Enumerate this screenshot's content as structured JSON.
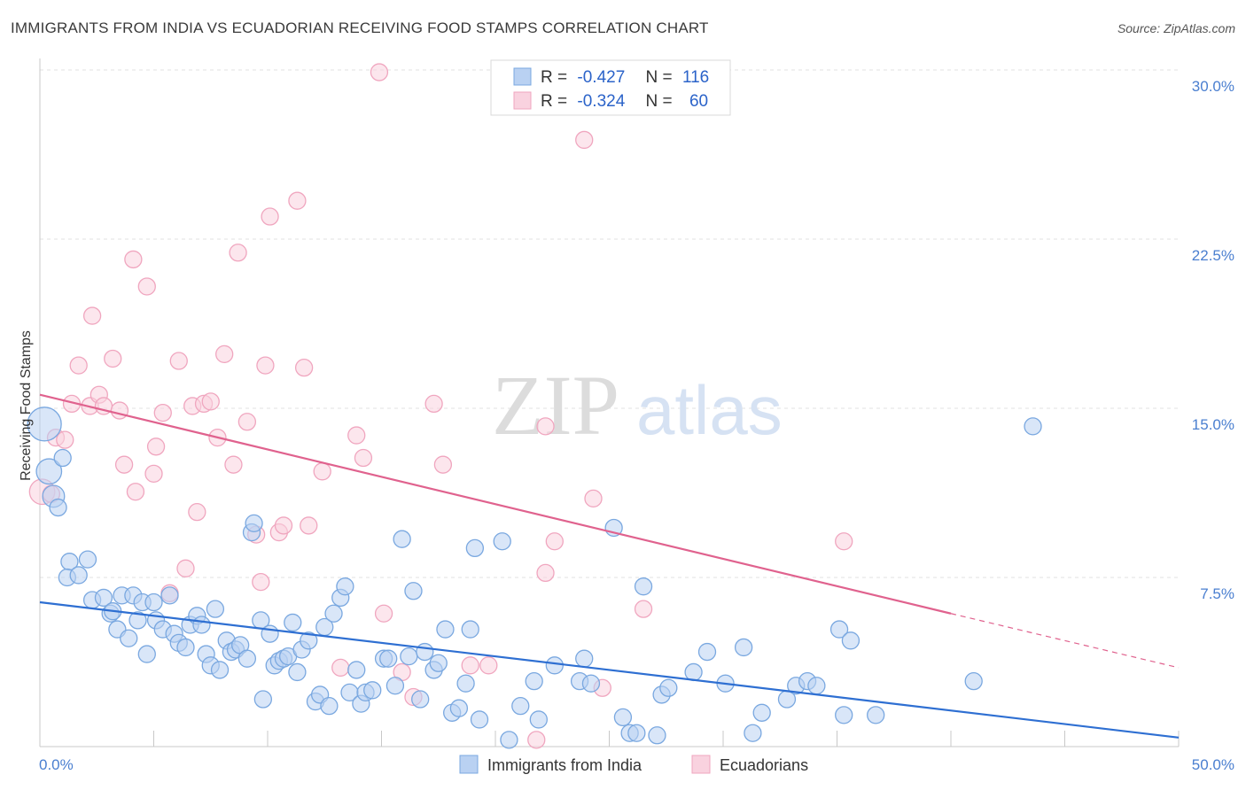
{
  "title": "IMMIGRANTS FROM INDIA VS ECUADORIAN RECEIVING FOOD STAMPS CORRELATION CHART",
  "source": "Source: ZipAtlas.com",
  "watermark": {
    "left": "ZIP",
    "right": "atlas"
  },
  "chart_data": {
    "type": "scatter",
    "xlabel": "",
    "ylabel": "Receiving Food Stamps",
    "xlim": [
      0,
      50
    ],
    "ylim": [
      0,
      30
    ],
    "x_tick_labels": [
      {
        "value": 0,
        "label": "0.0%"
      },
      {
        "value": 50,
        "label": "50.0%"
      }
    ],
    "y_tick_labels": [
      {
        "value": 7.5,
        "label": "7.5%"
      },
      {
        "value": 15,
        "label": "15.0%"
      },
      {
        "value": 22.5,
        "label": "22.5%"
      },
      {
        "value": 30,
        "label": "30.0%"
      }
    ],
    "grid": "horizontal dashed",
    "legend_position": "top-center",
    "stats": [
      {
        "r_label": "R =",
        "r_value": "-0.427",
        "n_label": "N =",
        "n_value": "116"
      },
      {
        "r_label": "R =",
        "r_value": "-0.324",
        "n_label": "N =",
        "n_value": "60"
      }
    ],
    "series": [
      {
        "name": "Immigrants from India",
        "color": "#7aa8e0",
        "fill": "#b9d1f2",
        "line_color": "#2e6fd2",
        "trend": {
          "x0": 0,
          "y0": 6.4,
          "x1": 50,
          "y1": 0.4
        },
        "points": [
          [
            0.2,
            14.3,
            2
          ],
          [
            0.4,
            12.2,
            1.5
          ],
          [
            0.6,
            11.1,
            1.3
          ],
          [
            0.8,
            10.6,
            1
          ],
          [
            1.0,
            12.8,
            1
          ],
          [
            1.3,
            8.2,
            1
          ],
          [
            1.2,
            7.5,
            1
          ],
          [
            1.7,
            7.6,
            1
          ],
          [
            2.1,
            8.3,
            1
          ],
          [
            2.3,
            6.5,
            1
          ],
          [
            2.8,
            6.6,
            1
          ],
          [
            3.1,
            5.9,
            1
          ],
          [
            3.2,
            6.0,
            1
          ],
          [
            3.4,
            5.2,
            1
          ],
          [
            3.6,
            6.7,
            1
          ],
          [
            3.9,
            4.8,
            1
          ],
          [
            4.1,
            6.7,
            1
          ],
          [
            4.3,
            5.6,
            1
          ],
          [
            4.5,
            6.4,
            1
          ],
          [
            4.7,
            4.1,
            1
          ],
          [
            5.0,
            6.4,
            1
          ],
          [
            5.1,
            5.6,
            1
          ],
          [
            5.4,
            5.2,
            1
          ],
          [
            5.7,
            6.7,
            1
          ],
          [
            5.9,
            5.0,
            1
          ],
          [
            6.1,
            4.6,
            1
          ],
          [
            6.4,
            4.4,
            1
          ],
          [
            6.6,
            5.4,
            1
          ],
          [
            6.9,
            5.8,
            1
          ],
          [
            7.1,
            5.4,
            1
          ],
          [
            7.3,
            4.1,
            1
          ],
          [
            7.5,
            3.6,
            1
          ],
          [
            7.7,
            6.1,
            1
          ],
          [
            7.9,
            3.4,
            1
          ],
          [
            8.2,
            4.7,
            1
          ],
          [
            8.4,
            4.2,
            1
          ],
          [
            8.6,
            4.3,
            1
          ],
          [
            8.8,
            4.5,
            1
          ],
          [
            9.1,
            3.9,
            1
          ],
          [
            9.3,
            9.5,
            1
          ],
          [
            9.4,
            9.9,
            1
          ],
          [
            9.7,
            5.6,
            1
          ],
          [
            9.8,
            2.1,
            1
          ],
          [
            10.1,
            5.0,
            1
          ],
          [
            10.3,
            3.6,
            1
          ],
          [
            10.5,
            3.8,
            1
          ],
          [
            10.7,
            3.9,
            1
          ],
          [
            10.9,
            4.0,
            1
          ],
          [
            11.1,
            5.5,
            1
          ],
          [
            11.3,
            3.3,
            1
          ],
          [
            11.5,
            4.3,
            1
          ],
          [
            11.8,
            4.7,
            1
          ],
          [
            12.1,
            2.0,
            1
          ],
          [
            12.3,
            2.3,
            1
          ],
          [
            12.5,
            5.3,
            1
          ],
          [
            12.7,
            1.8,
            1
          ],
          [
            12.9,
            5.9,
            1
          ],
          [
            13.2,
            6.6,
            1
          ],
          [
            13.4,
            7.1,
            1
          ],
          [
            13.6,
            2.4,
            1
          ],
          [
            13.9,
            3.4,
            1
          ],
          [
            14.1,
            1.9,
            1
          ],
          [
            14.3,
            2.4,
            1
          ],
          [
            14.6,
            2.5,
            1
          ],
          [
            15.1,
            3.9,
            1
          ],
          [
            15.3,
            3.9,
            1
          ],
          [
            15.6,
            2.7,
            1
          ],
          [
            15.9,
            9.2,
            1
          ],
          [
            16.2,
            4.0,
            1
          ],
          [
            16.4,
            6.9,
            1
          ],
          [
            16.7,
            2.1,
            1
          ],
          [
            16.9,
            4.2,
            1
          ],
          [
            17.3,
            3.4,
            1
          ],
          [
            17.5,
            3.7,
            1
          ],
          [
            17.8,
            5.2,
            1
          ],
          [
            18.1,
            1.5,
            1
          ],
          [
            18.4,
            1.7,
            1
          ],
          [
            18.7,
            2.8,
            1
          ],
          [
            18.9,
            5.2,
            1
          ],
          [
            19.3,
            1.2,
            1
          ],
          [
            19.1,
            8.8,
            1
          ],
          [
            20.3,
            9.1,
            1
          ],
          [
            20.6,
            0.3,
            1
          ],
          [
            21.1,
            1.8,
            1
          ],
          [
            21.7,
            2.9,
            1
          ],
          [
            21.9,
            1.2,
            1
          ],
          [
            22.6,
            3.6,
            1
          ],
          [
            23.7,
            2.9,
            1
          ],
          [
            23.9,
            3.9,
            1
          ],
          [
            24.2,
            2.8,
            1
          ],
          [
            25.2,
            9.7,
            1
          ],
          [
            25.6,
            1.3,
            1
          ],
          [
            25.9,
            0.6,
            1
          ],
          [
            26.2,
            0.6,
            1
          ],
          [
            26.5,
            7.1,
            1
          ],
          [
            27.1,
            0.5,
            1
          ],
          [
            27.3,
            2.3,
            1
          ],
          [
            27.6,
            2.6,
            1
          ],
          [
            28.7,
            3.3,
            1
          ],
          [
            29.3,
            4.2,
            1
          ],
          [
            30.1,
            2.8,
            1
          ],
          [
            30.9,
            4.4,
            1
          ],
          [
            31.3,
            0.6,
            1
          ],
          [
            31.7,
            1.5,
            1
          ],
          [
            32.8,
            2.1,
            1
          ],
          [
            33.2,
            2.7,
            1
          ],
          [
            33.7,
            2.9,
            1
          ],
          [
            34.1,
            2.7,
            1
          ],
          [
            35.1,
            5.2,
            1
          ],
          [
            35.3,
            1.4,
            1
          ],
          [
            35.6,
            4.7,
            1
          ],
          [
            36.7,
            1.4,
            1
          ],
          [
            41.0,
            2.9,
            1
          ],
          [
            43.6,
            14.2,
            1
          ]
        ]
      },
      {
        "name": "Ecuadorians",
        "color": "#f0a6bf",
        "fill": "#f9d2df",
        "line_color": "#e0628e",
        "trend": {
          "x0": 0,
          "y0": 15.6,
          "x1": 40,
          "y1": 5.9
        },
        "trend_dash": {
          "x0": 40,
          "y0": 5.9,
          "x1": 50,
          "y1": 3.5
        },
        "points": [
          [
            0.1,
            11.3,
            1.5
          ],
          [
            0.5,
            11.2,
            1
          ],
          [
            0.7,
            13.7,
            1
          ],
          [
            1.1,
            13.6,
            1
          ],
          [
            1.4,
            15.2,
            1
          ],
          [
            1.7,
            16.9,
            1
          ],
          [
            2.2,
            15.1,
            1
          ],
          [
            2.3,
            19.1,
            1
          ],
          [
            2.6,
            15.6,
            1
          ],
          [
            2.8,
            15.1,
            1
          ],
          [
            3.2,
            17.2,
            1
          ],
          [
            3.5,
            14.9,
            1
          ],
          [
            3.7,
            12.5,
            1
          ],
          [
            4.1,
            21.6,
            1
          ],
          [
            4.2,
            11.3,
            1
          ],
          [
            4.7,
            20.4,
            1
          ],
          [
            5.0,
            12.1,
            1
          ],
          [
            5.1,
            13.3,
            1
          ],
          [
            5.4,
            14.8,
            1
          ],
          [
            5.7,
            6.8,
            1
          ],
          [
            6.1,
            17.1,
            1
          ],
          [
            6.4,
            7.9,
            1
          ],
          [
            6.7,
            15.1,
            1
          ],
          [
            6.9,
            10.4,
            1
          ],
          [
            7.2,
            15.2,
            1
          ],
          [
            7.5,
            15.3,
            1
          ],
          [
            7.8,
            13.7,
            1
          ],
          [
            8.1,
            17.4,
            1
          ],
          [
            8.5,
            12.5,
            1
          ],
          [
            8.7,
            21.9,
            1
          ],
          [
            9.1,
            14.4,
            1
          ],
          [
            9.5,
            9.4,
            1
          ],
          [
            9.7,
            7.3,
            1
          ],
          [
            9.9,
            16.9,
            1
          ],
          [
            10.1,
            23.5,
            1
          ],
          [
            10.5,
            9.5,
            1
          ],
          [
            10.7,
            9.8,
            1
          ],
          [
            11.3,
            24.2,
            1
          ],
          [
            11.6,
            16.8,
            1
          ],
          [
            11.8,
            9.8,
            1
          ],
          [
            12.4,
            12.2,
            1
          ],
          [
            13.2,
            3.5,
            1
          ],
          [
            13.9,
            13.8,
            1
          ],
          [
            14.2,
            12.8,
            1
          ],
          [
            14.9,
            29.9,
            1
          ],
          [
            15.1,
            5.9,
            1
          ],
          [
            15.9,
            3.3,
            1
          ],
          [
            16.4,
            2.2,
            1
          ],
          [
            17.3,
            15.2,
            1
          ],
          [
            17.7,
            12.5,
            1
          ],
          [
            18.9,
            3.6,
            1
          ],
          [
            19.7,
            3.6,
            1
          ],
          [
            21.8,
            0.3,
            1
          ],
          [
            22.2,
            14.2,
            1
          ],
          [
            22.6,
            9.1,
            1
          ],
          [
            22.2,
            7.7,
            1
          ],
          [
            23.9,
            26.9,
            1
          ],
          [
            24.3,
            11.0,
            1
          ],
          [
            24.7,
            2.6,
            1
          ],
          [
            26.5,
            6.1,
            1
          ],
          [
            35.3,
            9.1,
            1
          ]
        ]
      }
    ]
  },
  "legend": {
    "items": [
      {
        "label": "Immigrants from India"
      },
      {
        "label": "Ecuadorians"
      }
    ]
  }
}
